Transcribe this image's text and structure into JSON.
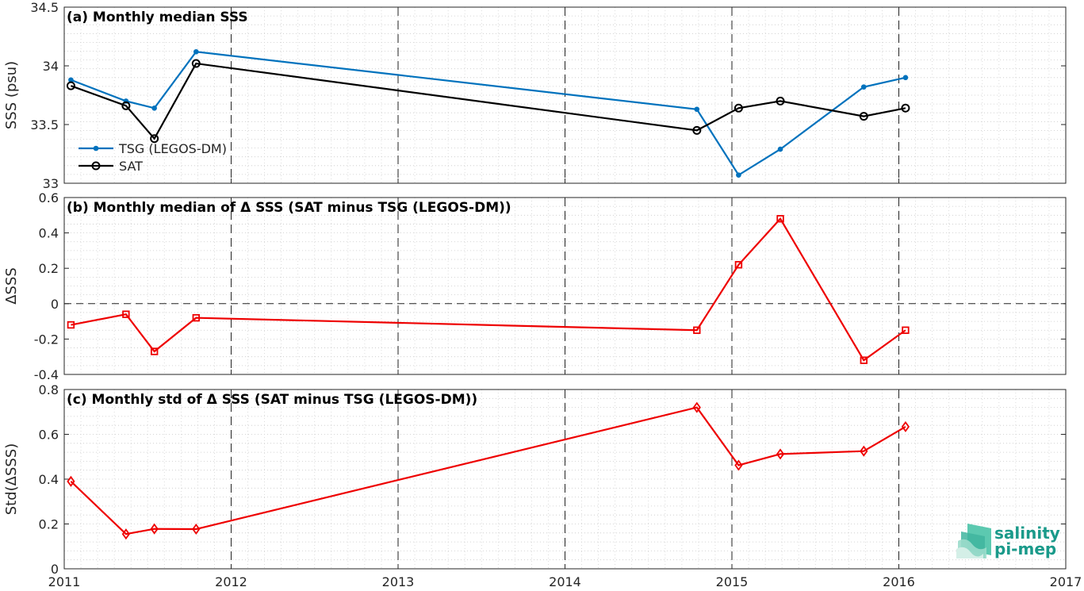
{
  "chart_data": [
    {
      "type": "line",
      "title": "(a) Monthly median SSS",
      "ylabel": "SSS (psu)",
      "ylim": [
        33,
        34.5
      ],
      "yticks": [
        "33",
        "33.5",
        "34",
        "34.5"
      ],
      "xlim": [
        2011,
        2017
      ],
      "grid": "dotted minor",
      "legend_position": "middle-left",
      "series": [
        {
          "name": "TSG (LEGOS-DM)",
          "color": "#0072BD",
          "marker": "filled-dot",
          "x": [
            2011.04,
            2011.37,
            2011.54,
            2011.79,
            2014.79,
            2015.04,
            2015.29,
            2015.79,
            2016.04
          ],
          "y": [
            33.88,
            33.7,
            33.64,
            34.12,
            33.63,
            33.07,
            33.29,
            33.82,
            33.9
          ]
        },
        {
          "name": "SAT",
          "color": "#000000",
          "marker": "circle",
          "x": [
            2011.04,
            2011.37,
            2011.54,
            2011.79,
            2014.79,
            2015.04,
            2015.29,
            2015.79,
            2016.04
          ],
          "y": [
            33.83,
            33.66,
            33.38,
            34.02,
            33.45,
            33.64,
            33.7,
            33.57,
            33.64
          ]
        }
      ]
    },
    {
      "type": "line",
      "title": "(b) Monthly median of Δ SSS (SAT minus TSG (LEGOS-DM))",
      "ylabel": "ΔSSS",
      "ylim": [
        -0.4,
        0.6
      ],
      "yticks": [
        "-0.4",
        "-0.2",
        "0",
        "0.2",
        "0.4",
        "0.6"
      ],
      "xlim": [
        2011,
        2017
      ],
      "zero_line": true,
      "series": [
        {
          "color": "#EE0000",
          "marker": "square",
          "x": [
            2011.04,
            2011.37,
            2011.54,
            2011.79,
            2014.79,
            2015.04,
            2015.29,
            2015.79,
            2016.04
          ],
          "y": [
            -0.12,
            -0.06,
            -0.27,
            -0.08,
            -0.15,
            0.22,
            0.48,
            -0.32,
            -0.15
          ]
        }
      ]
    },
    {
      "type": "line",
      "title": "(c) Monthly std of Δ SSS (SAT minus TSG (LEGOS-DM))",
      "ylabel": "Std(ΔSSS)",
      "ylim": [
        0,
        0.8
      ],
      "yticks": [
        "0",
        "0.2",
        "0.4",
        "0.6",
        "0.8"
      ],
      "xlim": [
        2011,
        2017
      ],
      "xticks": [
        "2011",
        "2012",
        "2013",
        "2014",
        "2015",
        "2016",
        "2017"
      ],
      "series": [
        {
          "color": "#EE0000",
          "marker": "diamond",
          "x": [
            2011.04,
            2011.37,
            2011.54,
            2011.79,
            2014.79,
            2015.04,
            2015.29,
            2015.79,
            2016.04
          ],
          "y": [
            0.39,
            0.155,
            0.178,
            0.177,
            0.72,
            0.462,
            0.512,
            0.525,
            0.634
          ]
        }
      ]
    }
  ],
  "logo": {
    "line1": "salinity",
    "line2": "pi-mep"
  }
}
